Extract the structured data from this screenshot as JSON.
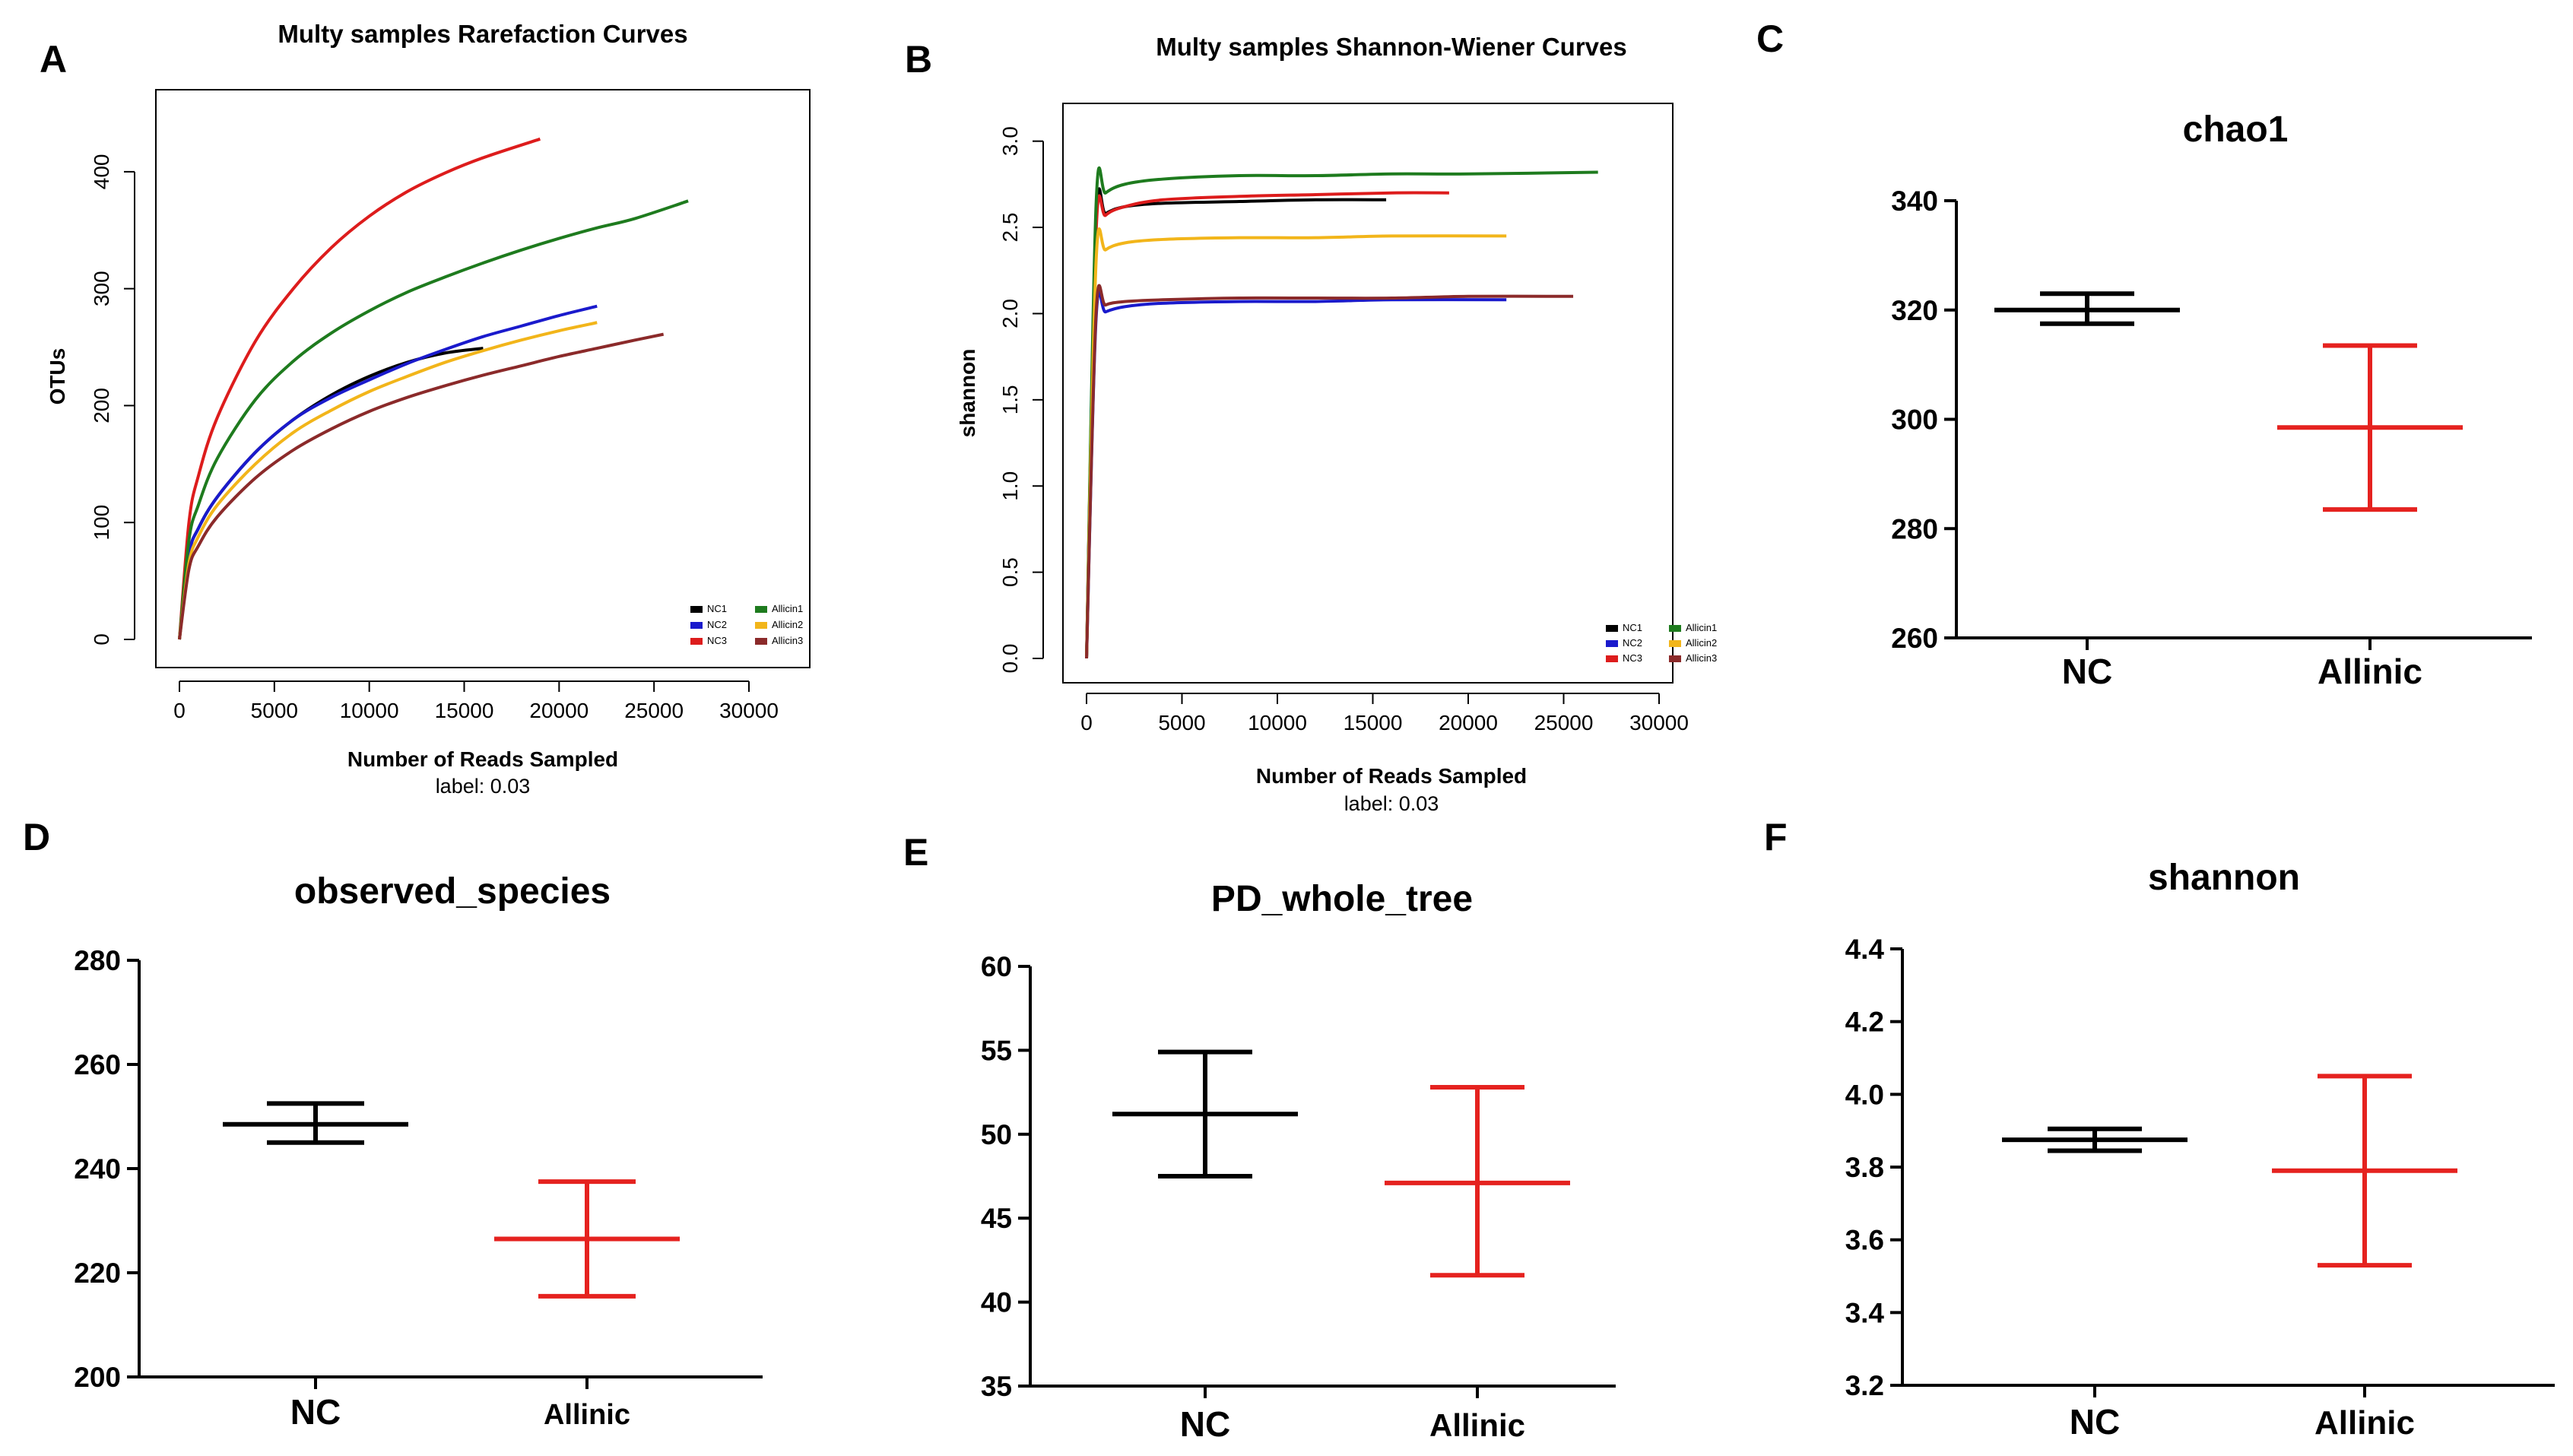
{
  "chart_data": [
    {
      "panel": "A",
      "type": "line",
      "title": "Multy samples Rarefaction Curves",
      "xlabel": "Number of Reads Sampled",
      "sublabel": "label: 0.03",
      "ylabel": "OTUs",
      "xlim": [
        0,
        30000
      ],
      "ylim": [
        0,
        450
      ],
      "xticks": [
        0,
        5000,
        10000,
        15000,
        20000,
        25000,
        30000
      ],
      "yticks": [
        0,
        100,
        200,
        300,
        400
      ],
      "legend": {
        "placement": "bottom-right",
        "labels": [
          "NC1",
          "NC2",
          "NC3",
          "Allicin1",
          "Allicin2",
          "Allicin3"
        ]
      },
      "series": [
        {
          "name": "NC1",
          "color": "#000000",
          "x": [
            0,
            500,
            1000,
            2000,
            4000,
            6000,
            8000,
            10000,
            12000,
            14000,
            16000
          ],
          "y": [
            0,
            72,
            95,
            122,
            160,
            188,
            209,
            225,
            237,
            245,
            249
          ]
        },
        {
          "name": "NC2",
          "color": "#1a1acc",
          "x": [
            0,
            500,
            1000,
            2000,
            4000,
            6000,
            8000,
            10000,
            12000,
            14000,
            16000,
            18000,
            20000,
            22000
          ],
          "y": [
            0,
            72,
            95,
            122,
            160,
            188,
            207,
            222,
            236,
            248,
            259,
            268,
            277,
            285
          ]
        },
        {
          "name": "NC3",
          "color": "#dd1c1c",
          "x": [
            0,
            500,
            1000,
            2000,
            4000,
            6000,
            8000,
            10000,
            12000,
            14000,
            16000,
            19000
          ],
          "y": [
            0,
            100,
            140,
            190,
            255,
            300,
            335,
            362,
            383,
            399,
            412,
            428
          ]
        },
        {
          "name": "Allicin1",
          "color": "#1e7b1e",
          "x": [
            0,
            500,
            1000,
            2000,
            4000,
            6000,
            8000,
            10000,
            12000,
            14000,
            16000,
            18000,
            20000,
            22000,
            24000,
            26800
          ],
          "y": [
            0,
            85,
            115,
            155,
            205,
            238,
            262,
            281,
            297,
            310,
            322,
            333,
            343,
            352,
            360,
            375
          ]
        },
        {
          "name": "Allicin2",
          "color": "#f2b51a",
          "x": [
            0,
            500,
            1000,
            2000,
            4000,
            6000,
            8000,
            10000,
            12000,
            14000,
            16000,
            18000,
            20000,
            22000
          ],
          "y": [
            0,
            65,
            88,
            115,
            150,
            177,
            196,
            212,
            225,
            237,
            247,
            256,
            264,
            271
          ]
        },
        {
          "name": "Allicin3",
          "color": "#8b2a2a",
          "x": [
            0,
            500,
            1000,
            2000,
            4000,
            6000,
            8000,
            10000,
            12000,
            14000,
            16000,
            18000,
            20000,
            22000,
            24000,
            25500
          ],
          "y": [
            0,
            60,
            80,
            105,
            138,
            162,
            180,
            195,
            207,
            217,
            226,
            234,
            242,
            249,
            256,
            261
          ]
        }
      ]
    },
    {
      "panel": "B",
      "type": "line",
      "title": "Multy samples Shannon-Wiener Curves",
      "xlabel": "Number of Reads Sampled",
      "sublabel": "label: 0.03",
      "ylabel": "shannon",
      "xlim": [
        0,
        30000
      ],
      "ylim": [
        0,
        3.1
      ],
      "xticks": [
        0,
        5000,
        10000,
        15000,
        20000,
        25000,
        30000
      ],
      "yticks": [
        0.0,
        0.5,
        1.0,
        1.5,
        2.0,
        2.5,
        3.0
      ],
      "legend": {
        "placement": "bottom-right",
        "labels": [
          "NC1",
          "NC2",
          "NC3",
          "Allicin1",
          "Allicin2",
          "Allicin3"
        ]
      },
      "series": [
        {
          "name": "NC1",
          "color": "#000000",
          "x": [
            0,
            500,
            1000,
            2000,
            4000,
            8000,
            12000,
            15700
          ],
          "y": [
            0,
            2.52,
            2.58,
            2.62,
            2.64,
            2.65,
            2.66,
            2.66
          ]
        },
        {
          "name": "NC2",
          "color": "#1a1acc",
          "x": [
            0,
            500,
            1000,
            2000,
            4000,
            8000,
            12000,
            16000,
            22000
          ],
          "y": [
            0,
            1.97,
            2.01,
            2.04,
            2.06,
            2.07,
            2.07,
            2.08,
            2.08
          ]
        },
        {
          "name": "NC3",
          "color": "#dd1c1c",
          "x": [
            0,
            500,
            1000,
            2000,
            4000,
            8000,
            12000,
            16000,
            19000
          ],
          "y": [
            0,
            2.47,
            2.57,
            2.62,
            2.66,
            2.68,
            2.69,
            2.7,
            2.7
          ]
        },
        {
          "name": "Allicin1",
          "color": "#1e7b1e",
          "x": [
            0,
            500,
            1000,
            2000,
            4000,
            8000,
            12000,
            16000,
            20000,
            26800
          ],
          "y": [
            0,
            2.63,
            2.7,
            2.75,
            2.78,
            2.8,
            2.8,
            2.81,
            2.81,
            2.82
          ]
        },
        {
          "name": "Allicin2",
          "color": "#f2b51a",
          "x": [
            0,
            500,
            1000,
            2000,
            4000,
            8000,
            12000,
            16000,
            22000
          ],
          "y": [
            0,
            2.3,
            2.37,
            2.41,
            2.43,
            2.44,
            2.44,
            2.45,
            2.45
          ]
        },
        {
          "name": "Allicin3",
          "color": "#8b2a2a",
          "x": [
            0,
            500,
            1000,
            2000,
            4000,
            8000,
            12000,
            16000,
            20000,
            25500
          ],
          "y": [
            0,
            2.0,
            2.05,
            2.07,
            2.08,
            2.09,
            2.09,
            2.09,
            2.1,
            2.1
          ]
        }
      ]
    },
    {
      "panel": "C",
      "type": "errorbar",
      "title": "chao1",
      "ylim": [
        260,
        340
      ],
      "yticks": [
        260,
        280,
        300,
        320,
        340
      ],
      "categories": [
        "NC",
        "Allinic"
      ],
      "colors": [
        "#000000",
        "#e5221f"
      ],
      "mean": [
        320,
        298.5
      ],
      "upper": [
        323,
        313.5
      ],
      "lower": [
        317.5,
        283.5
      ]
    },
    {
      "panel": "D",
      "type": "errorbar",
      "title": "observed_species",
      "ylim": [
        200,
        280
      ],
      "yticks": [
        200,
        220,
        240,
        260,
        280
      ],
      "categories": [
        "NC",
        "Allinic"
      ],
      "colors": [
        "#000000",
        "#e5221f"
      ],
      "mean": [
        248.5,
        226.5
      ],
      "upper": [
        252.5,
        237.5
      ],
      "lower": [
        245,
        215.5
      ]
    },
    {
      "panel": "E",
      "type": "errorbar",
      "title": "PD_whole_tree",
      "ylim": [
        35,
        60
      ],
      "yticks": [
        35,
        40,
        45,
        50,
        55,
        60
      ],
      "categories": [
        "NC",
        "Allinic"
      ],
      "colors": [
        "#000000",
        "#e5221f"
      ],
      "mean": [
        51.2,
        47.1
      ],
      "upper": [
        54.9,
        52.8
      ],
      "lower": [
        47.5,
        41.6
      ]
    },
    {
      "panel": "F",
      "type": "errorbar",
      "title": "shannon",
      "ylim": [
        3.2,
        4.4
      ],
      "yticks": [
        3.2,
        3.4,
        3.6,
        3.8,
        4.0,
        4.2,
        4.4
      ],
      "ytick_labels": [
        "3.2",
        "3.4",
        "3.6",
        "3.8",
        "4.0",
        "4.2",
        "4.4"
      ],
      "categories": [
        "NC",
        "Allinic"
      ],
      "colors": [
        "#000000",
        "#e5221f"
      ],
      "mean": [
        3.875,
        3.79
      ],
      "upper": [
        3.905,
        4.05
      ],
      "lower": [
        3.845,
        3.53
      ]
    }
  ]
}
